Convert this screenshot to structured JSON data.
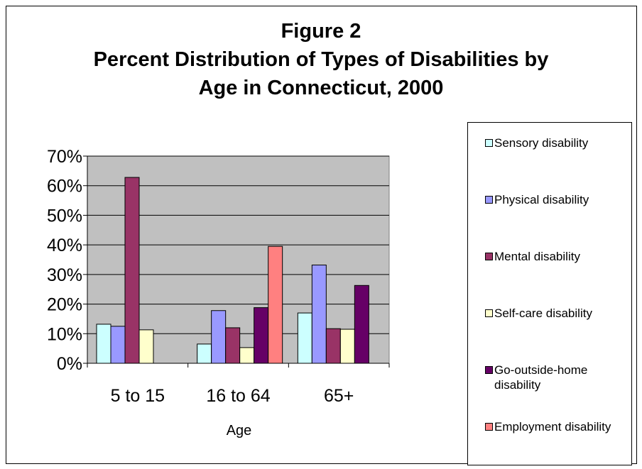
{
  "chart_data": {
    "type": "bar",
    "title_lines": [
      "Figure 2",
      "Percent Distribution of Types of Disabilities by",
      "Age in Connecticut, 2000"
    ],
    "xlabel": "Age",
    "ylabel": "",
    "categories": [
      "5 to 15",
      "16 to 64",
      "65+"
    ],
    "ylim": [
      0,
      70
    ],
    "yticks": [
      0,
      10,
      20,
      30,
      40,
      50,
      60,
      70
    ],
    "ytick_labels": [
      "0%",
      "10%",
      "20%",
      "30%",
      "40%",
      "50%",
      "60%",
      "70%"
    ],
    "grid": true,
    "plot_background": "#c0c0c0",
    "legend_position": "right",
    "series": [
      {
        "name": "Sensory disability",
        "color": "#ccffff",
        "values": [
          13.2,
          6.5,
          17.0
        ]
      },
      {
        "name": "Physical disability",
        "color": "#9999ff",
        "values": [
          12.5,
          17.8,
          33.2
        ]
      },
      {
        "name": "Mental disability",
        "color": "#993366",
        "values": [
          62.8,
          12.0,
          11.7
        ]
      },
      {
        "name": "Self-care disability",
        "color": "#ffffcc",
        "values": [
          11.3,
          5.3,
          11.5
        ]
      },
      {
        "name": "Go-outside-home disability",
        "color": "#660066",
        "values": [
          null,
          18.8,
          26.3
        ]
      },
      {
        "name": "Employment disability",
        "color": "#ff8080",
        "values": [
          null,
          39.5,
          null
        ]
      }
    ]
  }
}
